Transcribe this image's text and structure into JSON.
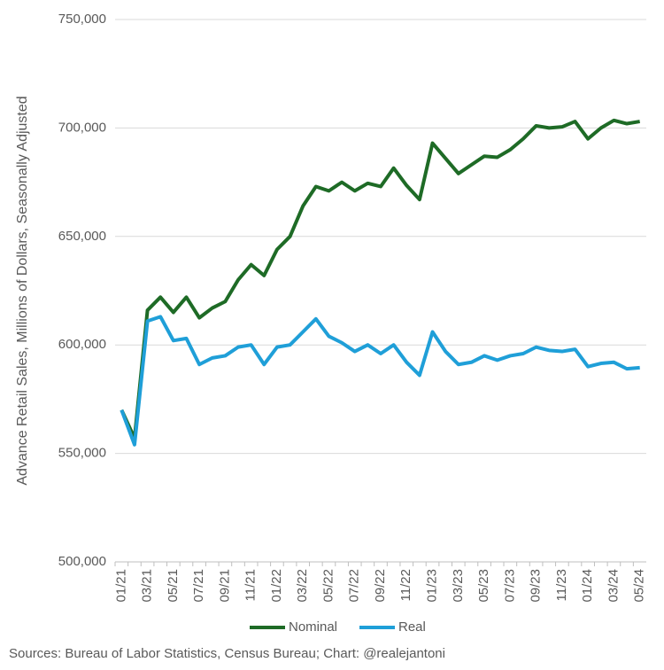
{
  "chart_data": {
    "type": "line",
    "y_label": "Advance Retail Sales, Millions of Dollars, Seasonally Adjusted",
    "source": "Sources: Bureau of Labor Statistics, Census Bureau; Chart: @realejantoni",
    "categories": [
      "01/21",
      null,
      "03/21",
      null,
      "05/21",
      null,
      "07/21",
      null,
      "09/21",
      null,
      "11/21",
      null,
      "01/22",
      null,
      "03/22",
      null,
      "05/22",
      null,
      "07/22",
      null,
      "09/22",
      null,
      "11/22",
      null,
      "01/23",
      null,
      "03/23",
      null,
      "05/23",
      null,
      "07/23",
      null,
      "09/23",
      null,
      "11/23",
      null,
      "01/24",
      null,
      "03/24",
      null,
      "05/24"
    ],
    "series": [
      {
        "name": "Nominal",
        "color": "#1e6b26",
        "values": [
          570,
          557,
          616,
          622,
          615,
          622,
          612.5,
          617,
          620,
          630,
          637,
          632,
          644,
          650,
          664,
          673,
          671,
          675,
          671,
          674.5,
          673,
          681.5,
          673.5,
          667,
          693,
          686,
          679,
          683,
          687,
          686.5,
          690,
          695,
          701,
          700,
          700.5,
          703,
          695,
          700,
          703.5,
          702,
          703
        ]
      },
      {
        "name": "Real",
        "color": "#1f9fd8",
        "values": [
          570,
          554,
          611,
          613,
          602,
          603,
          591,
          594,
          595,
          599,
          600,
          591,
          599,
          600,
          606,
          612,
          604,
          601,
          597,
          600,
          596,
          600,
          592,
          586,
          606,
          597,
          591,
          592,
          595,
          593,
          595,
          596,
          599,
          597.5,
          597,
          598,
          590,
          591.5,
          592,
          589,
          589.5
        ]
      }
    ],
    "ylim": [
      500,
      750
    ],
    "yticks": [
      {
        "value": 500,
        "label": "500,000"
      },
      {
        "value": 550,
        "label": "550,000"
      },
      {
        "value": 600,
        "label": "600,000"
      },
      {
        "value": 650,
        "label": "650,000"
      },
      {
        "value": 700,
        "label": "700,000"
      },
      {
        "value": 750,
        "label": "750,000"
      }
    ],
    "grid": true,
    "legend": "bottom"
  }
}
